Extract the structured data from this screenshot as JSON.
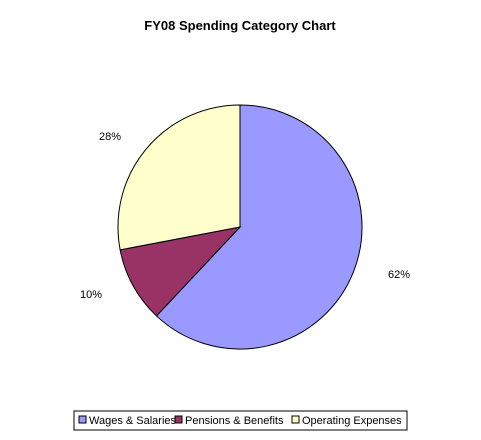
{
  "chart_data": {
    "type": "pie",
    "title": "FY08 Spending Category Chart",
    "slices": [
      {
        "label": "Wages & Salaries",
        "value": 62,
        "display": "62%",
        "color": "#9999ff"
      },
      {
        "label": "Pensions & Benefits",
        "value": 10,
        "display": "10%",
        "color": "#993366"
      },
      {
        "label": "Operating Expenses",
        "value": 28,
        "display": "28%",
        "color": "#ffffcc"
      }
    ],
    "legend_position": "bottom"
  }
}
